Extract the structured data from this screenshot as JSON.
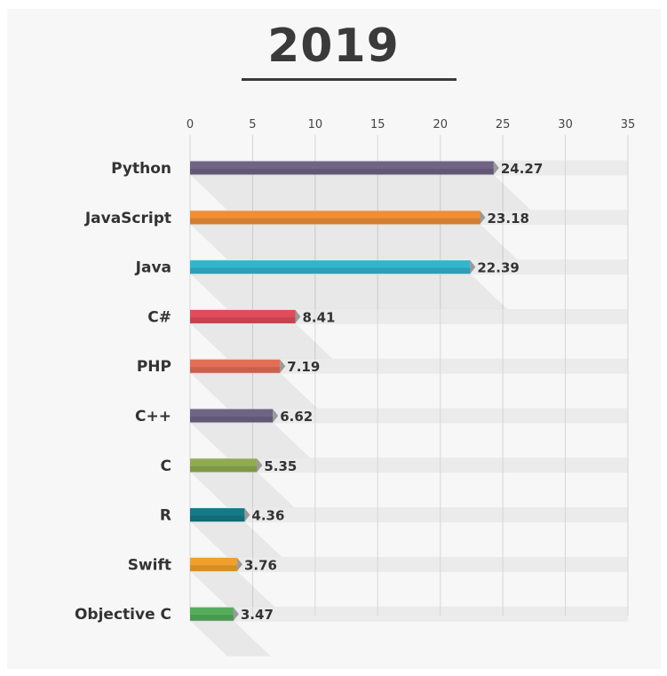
{
  "chart_data": {
    "type": "bar",
    "orientation": "horizontal",
    "title": "2019",
    "categories": [
      "Python",
      "JavaScript",
      "Java",
      "C#",
      "PHP",
      "C++",
      "C",
      "R",
      "Swift",
      "Objective C"
    ],
    "values": [
      24.27,
      23.18,
      22.39,
      8.41,
      7.19,
      6.62,
      5.35,
      4.36,
      3.76,
      3.47
    ],
    "value_labels": [
      "24.27",
      "23.18",
      "22.39",
      "8.41",
      "7.19",
      "6.62",
      "5.35",
      "4.36",
      "3.76",
      "3.47"
    ],
    "colors": [
      "#6f6485",
      "#ef8e35",
      "#33b5cf",
      "#e14b5a",
      "#e36e56",
      "#6f6485",
      "#8fac53",
      "#157a87",
      "#f0a12b",
      "#55ad5c"
    ],
    "xlim": [
      0,
      35
    ],
    "xticks": [
      0,
      5,
      10,
      15,
      20,
      25,
      30,
      35
    ],
    "xtick_labels": [
      "0",
      "5",
      "10",
      "15",
      "20",
      "25",
      "30",
      "35"
    ],
    "xaxis_position": "top",
    "grid": true,
    "legend": "none"
  }
}
